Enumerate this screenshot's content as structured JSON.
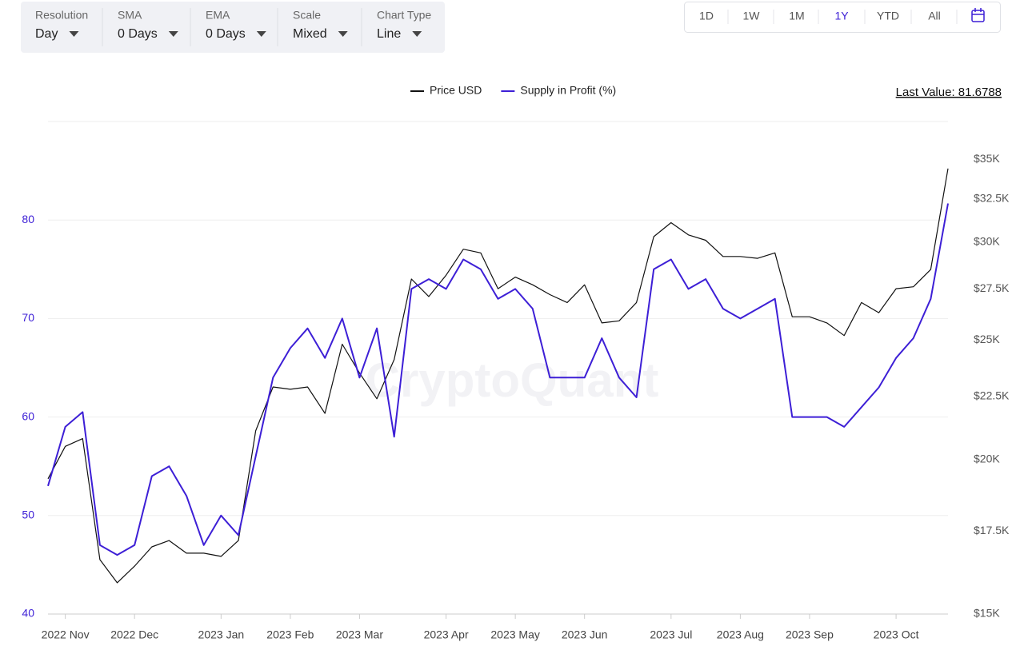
{
  "toolbar": [
    {
      "label": "Resolution",
      "value": "Day"
    },
    {
      "label": "SMA",
      "value": "0 Days"
    },
    {
      "label": "EMA",
      "value": "0 Days"
    },
    {
      "label": "Scale",
      "value": "Mixed"
    },
    {
      "label": "Chart Type",
      "value": "Line"
    }
  ],
  "ranges": [
    "1D",
    "1W",
    "1M",
    "1Y",
    "YTD",
    "All"
  ],
  "active_range": "1Y",
  "chart_data": {
    "type": "line",
    "watermark": "CryptoQuant",
    "last_value_label": "Last Value: 81.6788",
    "categories": [
      null,
      "2022 Nov",
      null,
      null,
      null,
      "2022 Dec",
      null,
      null,
      null,
      null,
      "2023 Jan",
      null,
      null,
      null,
      "2023 Feb",
      null,
      null,
      null,
      "2023 Mar",
      null,
      null,
      null,
      null,
      "2023 Apr",
      null,
      null,
      null,
      "2023 May",
      null,
      null,
      null,
      "2023 Jun",
      null,
      null,
      null,
      null,
      "2023 Jul",
      null,
      null,
      null,
      "2023 Aug",
      null,
      null,
      null,
      "2023 Sep",
      null,
      null,
      null,
      null,
      "2023 Oct",
      null,
      null,
      null
    ],
    "series": [
      {
        "name": "Price USD",
        "color": "#111111",
        "axis": "y2",
        "values": [
          19300,
          20500,
          20800,
          16600,
          15900,
          16400,
          17000,
          17200,
          16800,
          16800,
          16700,
          17200,
          21100,
          22900,
          22800,
          22900,
          21800,
          24800,
          23500,
          22400,
          24100,
          28000,
          27100,
          28200,
          29600,
          29400,
          27500,
          28100,
          27700,
          27200,
          26800,
          27700,
          25800,
          25900,
          26800,
          30300,
          31100,
          30400,
          30100,
          29200,
          29200,
          29100,
          29400,
          26100,
          26100,
          25800,
          25200,
          26800,
          26300,
          27500,
          27600,
          28500,
          34400
        ]
      },
      {
        "name": "Supply in Profit (%)",
        "color": "#3d1fd6",
        "values": [
          53,
          59,
          60.5,
          47,
          46,
          47,
          54,
          55,
          52,
          47,
          50,
          48,
          56,
          64,
          67,
          69,
          66,
          70,
          64,
          69,
          58,
          73,
          74,
          73,
          76,
          75,
          72,
          73,
          71,
          64,
          64,
          64,
          68,
          64,
          62,
          75,
          76,
          73,
          74,
          71,
          70,
          71,
          72,
          60,
          60,
          60,
          59,
          61,
          63,
          66,
          68,
          72,
          81.6788
        ]
      }
    ],
    "ylim": [
      40,
      90
    ],
    "yticks": [
      40,
      50,
      60,
      70,
      80
    ],
    "y2lim": [
      15000,
      37550
    ],
    "y2scale": "log",
    "y2ticks": [
      {
        "value": 15000,
        "label": "$15K"
      },
      {
        "value": 17500,
        "label": "$17.5K"
      },
      {
        "value": 20000,
        "label": "$20K"
      },
      {
        "value": 22500,
        "label": "$22.5K"
      },
      {
        "value": 25000,
        "label": "$25K"
      },
      {
        "value": 27500,
        "label": "$27.5K"
      },
      {
        "value": 30000,
        "label": "$30K"
      },
      {
        "value": 32500,
        "label": "$32.5K"
      },
      {
        "value": 35000,
        "label": "$35K"
      }
    ],
    "grid": true,
    "legend": "top"
  }
}
